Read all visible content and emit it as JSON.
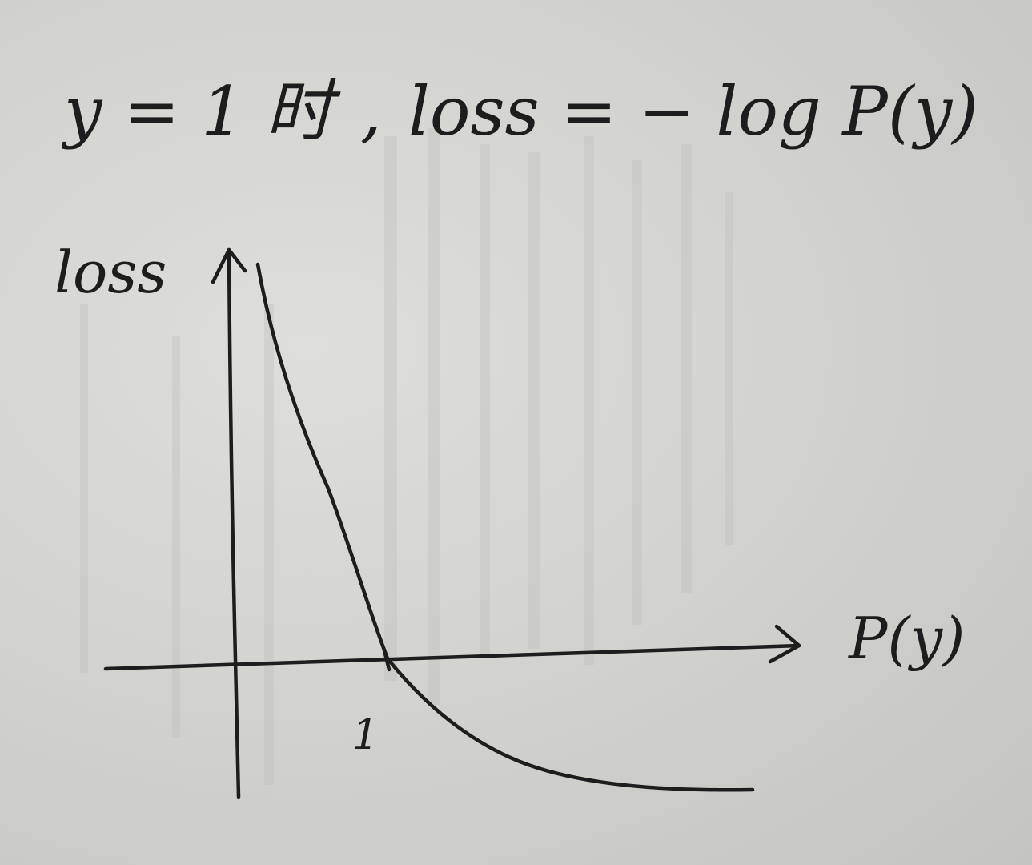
{
  "heading": {
    "condition": "y = 1 时",
    "separator": ",",
    "formula": "loss = − log P(y)"
  },
  "axes": {
    "y_label": "loss",
    "x_label": "P(y)",
    "x_tick": "1"
  },
  "curve": {
    "description_function": "-log(x)",
    "crosses_axis_at": 1
  },
  "colors": {
    "ink": "#1d1d1d",
    "paper": "#d6d6d2"
  }
}
